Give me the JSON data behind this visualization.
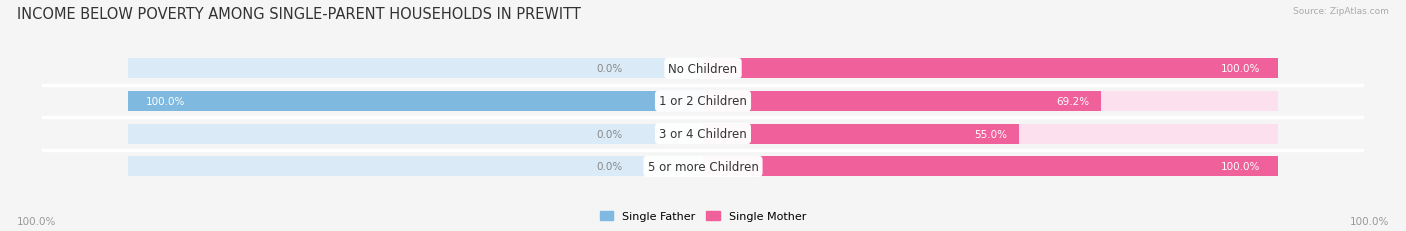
{
  "title": "INCOME BELOW POVERTY AMONG SINGLE-PARENT HOUSEHOLDS IN PREWITT",
  "source": "Source: ZipAtlas.com",
  "categories": [
    "No Children",
    "1 or 2 Children",
    "3 or 4 Children",
    "5 or more Children"
  ],
  "single_father": [
    0.0,
    100.0,
    0.0,
    0.0
  ],
  "single_mother": [
    100.0,
    69.2,
    55.0,
    100.0
  ],
  "father_color": "#7fb9e0",
  "mother_color": "#f0609a",
  "father_bg_color": "#daeaf7",
  "mother_bg_color": "#fce0ed",
  "bar_height": 0.62,
  "title_fontsize": 10.5,
  "label_fontsize": 7.5,
  "category_fontsize": 8.5,
  "x_left_label": "100.0%",
  "x_right_label": "100.0%",
  "legend_father": "Single Father",
  "legend_mother": "Single Mother",
  "background_color": "#f5f5f5",
  "grid_color": "#e0e0e0"
}
